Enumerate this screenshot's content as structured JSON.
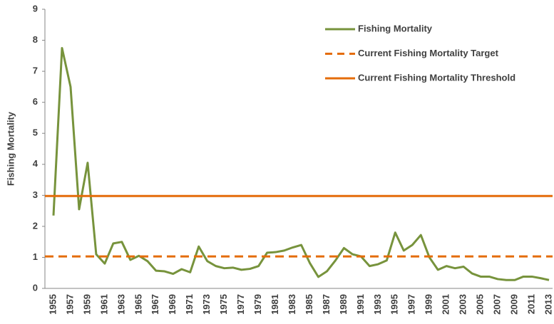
{
  "chart_data": {
    "type": "line",
    "y_label": "Fishing Mortality",
    "categories": [
      "1955",
      null,
      "1957",
      null,
      "1959",
      null,
      "1961",
      null,
      "1963",
      null,
      "1965",
      null,
      "1967",
      null,
      "1969",
      null,
      "1971",
      null,
      "1973",
      null,
      "1975",
      null,
      "1977",
      null,
      "1979",
      null,
      "1981",
      null,
      "1983",
      null,
      "1985",
      null,
      "1987",
      null,
      "1989",
      null,
      "1991",
      null,
      "1993",
      null,
      "1995",
      null,
      "1997",
      null,
      "1999",
      null,
      "2001",
      null,
      "2003",
      null,
      "2005",
      null,
      "2007",
      null,
      "2009",
      null,
      "2011",
      null,
      "2013"
    ],
    "series": [
      {
        "name": "Fishing Mortality",
        "color": "#77933c",
        "values": [
          2.35,
          7.75,
          6.5,
          2.55,
          4.05,
          1.1,
          0.8,
          1.45,
          1.5,
          0.92,
          1.05,
          0.88,
          0.57,
          0.55,
          0.47,
          0.62,
          0.52,
          1.35,
          0.88,
          0.72,
          0.65,
          0.67,
          0.6,
          0.63,
          0.72,
          1.15,
          1.17,
          1.22,
          1.32,
          1.4,
          0.82,
          0.37,
          0.55,
          0.9,
          1.3,
          1.1,
          1.03,
          0.72,
          0.78,
          0.9,
          1.8,
          1.22,
          1.4,
          1.72,
          1.0,
          0.6,
          0.72,
          0.65,
          0.7,
          0.48,
          0.38,
          0.38,
          0.3,
          0.27,
          0.27,
          0.38,
          0.38,
          0.33,
          0.27
        ]
      },
      {
        "name": "Current Fishing Mortality Target",
        "color": "#e46c0a",
        "dashed": true,
        "value": 1.03
      },
      {
        "name": "Current Fishing Mortality Threshold",
        "color": "#e46c0a",
        "dashed": false,
        "value": 2.98
      }
    ],
    "ylim": [
      0,
      9
    ],
    "yticks": [
      0,
      1,
      2,
      3,
      4,
      5,
      6,
      7,
      8,
      9
    ],
    "legend": "upper right"
  }
}
